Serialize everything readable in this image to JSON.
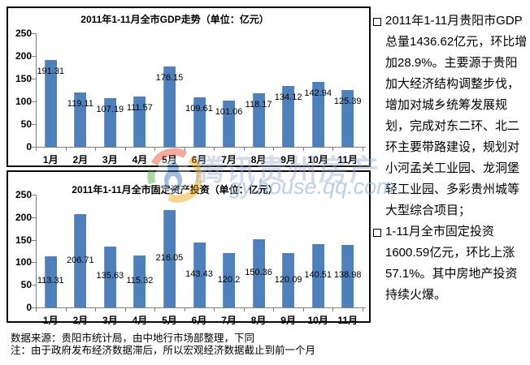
{
  "chart_data": [
    {
      "type": "bar",
      "title": "2011年1-11月全市GDP走势（单位：亿元）",
      "categories": [
        "1月",
        "2月",
        "3月",
        "4月",
        "5月",
        "6月",
        "7月",
        "8月",
        "9月",
        "10月",
        "11月"
      ],
      "values": [
        191.31,
        119.11,
        107.19,
        111.57,
        176.15,
        109.61,
        101.06,
        118.17,
        134.12,
        142.94,
        125.39
      ],
      "value_labels": [
        "191.31",
        "119.11",
        "107.19",
        "111.57",
        "176.15",
        "109.61",
        "101.06",
        "118.17",
        "134.12",
        "142.94",
        "125.39"
      ],
      "xlabel": "",
      "ylabel": "",
      "ylim": [
        0,
        250
      ],
      "y_ticks": [
        0,
        50,
        100,
        150,
        200,
        250
      ],
      "grid": "off",
      "legend": "none",
      "data_label_position": "inside-end"
    },
    {
      "type": "bar",
      "title": "2011年1-11月全市固定资产投资（单位：亿元）",
      "categories": [
        "1月",
        "2月",
        "3月",
        "4月",
        "5月",
        "6月",
        "7月",
        "8月",
        "9月",
        "10月",
        "11月"
      ],
      "values": [
        113.31,
        206.71,
        135.63,
        115.32,
        216.05,
        143.43,
        120.2,
        150.36,
        120.09,
        140.51,
        138.98
      ],
      "value_labels": [
        "113.31",
        "206.71",
        "135.63",
        "115.32",
        "216.05",
        "143.43",
        "120.2",
        "150.36",
        "120.09",
        "140.51",
        "138.98"
      ],
      "xlabel": "",
      "ylabel": "",
      "ylim": [
        0,
        250
      ],
      "y_ticks": [
        0,
        50,
        100,
        150,
        200,
        250
      ],
      "grid": "off",
      "legend": "none",
      "data_label_position": "inside-middle"
    }
  ],
  "commentary": {
    "bullets": [
      "2011年1-11月贵阳市GDP总量1436.62亿元，环比增加28.9%。主要源于贵阳加大经济结构调整步伐，增加对城乡统筹发展规划，完成对东二环、北二环主要带路建设，规划对小河孟关工业园、龙洞堡轻工业园、多彩贵州城等大型综合项目；",
      "1-11月全市固定投资1600.59亿元，环比上涨57.1%。其中房地产投资持续火爆。"
    ]
  },
  "notes": {
    "source": "数据来源：贵阳市统计局，由中地行市场部整理，下同",
    "remark": "注：由于政府发布经济数据滞后，所以宏观经济数据截止到前一个月"
  },
  "watermark": {
    "brand": "腾讯贵州房产",
    "site": "gy.house.qq.com"
  },
  "colors": {
    "bar_fill": "#4e80bc",
    "axis": "#7f7f7f",
    "chart_border": "#0a0a0a",
    "watermark_blue": "#8cafd7"
  }
}
